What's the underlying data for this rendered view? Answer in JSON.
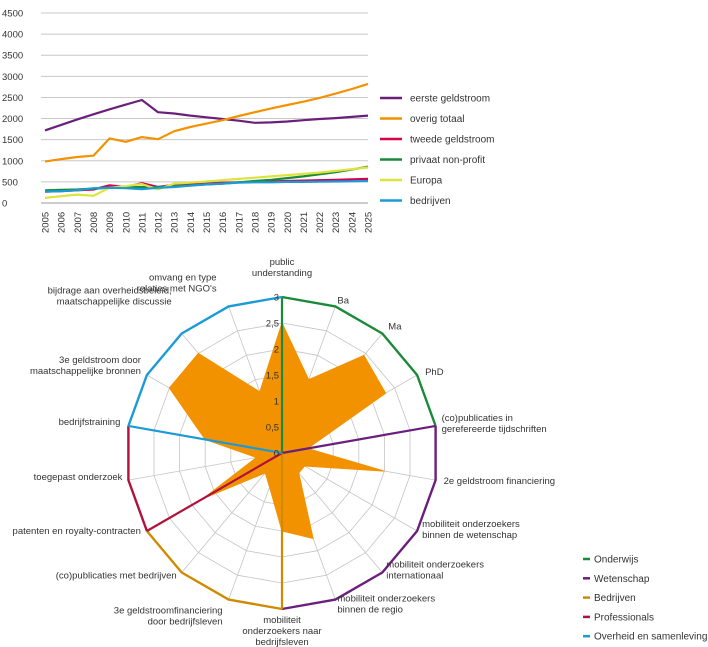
{
  "chart_data": [
    {
      "type": "line",
      "title": "",
      "xlabel": "",
      "ylabel": "",
      "ylim": [
        0,
        4500
      ],
      "yticks": [
        "4500",
        "4000",
        "3500",
        "3000",
        "2500",
        "2000",
        "1500",
        "1000",
        "500",
        "0"
      ],
      "x": [
        "2005",
        "2006",
        "2007",
        "2008",
        "2009",
        "2010",
        "2011",
        "2012",
        "2013",
        "2014",
        "2015",
        "2016",
        "2017",
        "2018",
        "2019",
        "2020",
        "2021",
        "2022",
        "2023",
        "2024",
        "2025"
      ],
      "grid": true,
      "legend_position": "right",
      "series": [
        {
          "name": "eerste geldstroom",
          "color": "#6b1f7c",
          "values": [
            1720,
            1850,
            1980,
            2100,
            2220,
            2330,
            2440,
            2150,
            2120,
            2070,
            2030,
            1990,
            1950,
            1900,
            1910,
            1930,
            1960,
            1990,
            2010,
            2040,
            2070
          ]
        },
        {
          "name": "overig totaal",
          "color": "#f39200",
          "values": [
            980,
            1040,
            1090,
            1120,
            1530,
            1450,
            1560,
            1510,
            1700,
            1800,
            1880,
            1960,
            2060,
            2150,
            2240,
            2320,
            2400,
            2490,
            2590,
            2700,
            2820
          ]
        },
        {
          "name": "tweede geldstroom",
          "color": "#d6004c",
          "values": [
            270,
            280,
            300,
            320,
            420,
            380,
            470,
            380,
            430,
            450,
            460,
            480,
            490,
            500,
            510,
            520,
            530,
            540,
            550,
            560,
            570
          ]
        },
        {
          "name": "privaat non-profit",
          "color": "#1a8a3a",
          "values": [
            300,
            310,
            320,
            340,
            360,
            370,
            380,
            380,
            400,
            420,
            440,
            460,
            490,
            520,
            550,
            590,
            630,
            680,
            730,
            790,
            860
          ]
        },
        {
          "name": "Europa",
          "color": "#dde33b",
          "values": [
            120,
            160,
            200,
            170,
            360,
            400,
            450,
            320,
            460,
            480,
            510,
            540,
            570,
            600,
            630,
            660,
            690,
            720,
            760,
            800,
            840
          ]
        },
        {
          "name": "bedrijven",
          "color": "#1a9bd7",
          "values": [
            270,
            280,
            300,
            350,
            360,
            350,
            330,
            360,
            380,
            410,
            440,
            460,
            480,
            490,
            490,
            500,
            500,
            505,
            510,
            515,
            520
          ]
        }
      ]
    },
    {
      "type": "radar",
      "title": "",
      "rlim": [
        0,
        3
      ],
      "rticks": [
        "0",
        "0,5",
        "1",
        "1,5",
        "2",
        "2,5",
        "3"
      ],
      "fill_color": "#f39200",
      "axes": [
        {
          "label": "public understanding",
          "value": 2.5
        },
        {
          "label": "Ba",
          "value": 1.5
        },
        {
          "label": "Ma",
          "value": 2.45
        },
        {
          "label": "PhD",
          "value": 2.3
        },
        {
          "label": "(co)publicaties in gerefereerde tijdschriften",
          "value": 0.5
        },
        {
          "label": "2e geldstroom financiering",
          "value": 2.0
        },
        {
          "label": "mobiliteit onderzoekers binnen de wetenschap",
          "value": 0.5
        },
        {
          "label": "mobiliteit onderzoekers internationaal",
          "value": 0.5
        },
        {
          "label": "mobiliteit onderzoekers binnen de regio",
          "value": 1.75
        },
        {
          "label": "mobiliteit onderzoekers naar bedrijfsleven",
          "value": 1.5
        },
        {
          "label": "3e geldstroomfinanciering door bedrijfsleven",
          "value": 0.7
        },
        {
          "label": "(co)publicaties met bedrijven",
          "value": 0.5
        },
        {
          "label": "patenten en royalty-contracten",
          "value": 1.75
        },
        {
          "label": "toegepast onderzoek",
          "value": 0.5
        },
        {
          "label": "bedrijfstraining",
          "value": 1.5
        },
        {
          "label": "3e geldstroom door maatschappelijke bronnen",
          "value": 2.5
        },
        {
          "label": "bijdrage aan overheidsbeleid, maatschappelijke discussie",
          "value": 2.5
        },
        {
          "label": "omvang en type relaties met NGO's",
          "value": 1.25
        }
      ],
      "groups": [
        {
          "name": "Onderwijs",
          "color": "#1a8a3a",
          "from": 0,
          "to": 4
        },
        {
          "name": "Wetenschap",
          "color": "#6b1f7c",
          "from": 4,
          "to": 9
        },
        {
          "name": "Bedrijven",
          "color": "#d08a00",
          "from": 9,
          "to": 12
        },
        {
          "name": "Professionals",
          "color": "#b0123b",
          "from": 12,
          "to": 14
        },
        {
          "name": "Overheid en samenleving",
          "color": "#1a9bd7",
          "from": 14,
          "to": 18
        }
      ],
      "legend_position": "bottom-right"
    }
  ]
}
